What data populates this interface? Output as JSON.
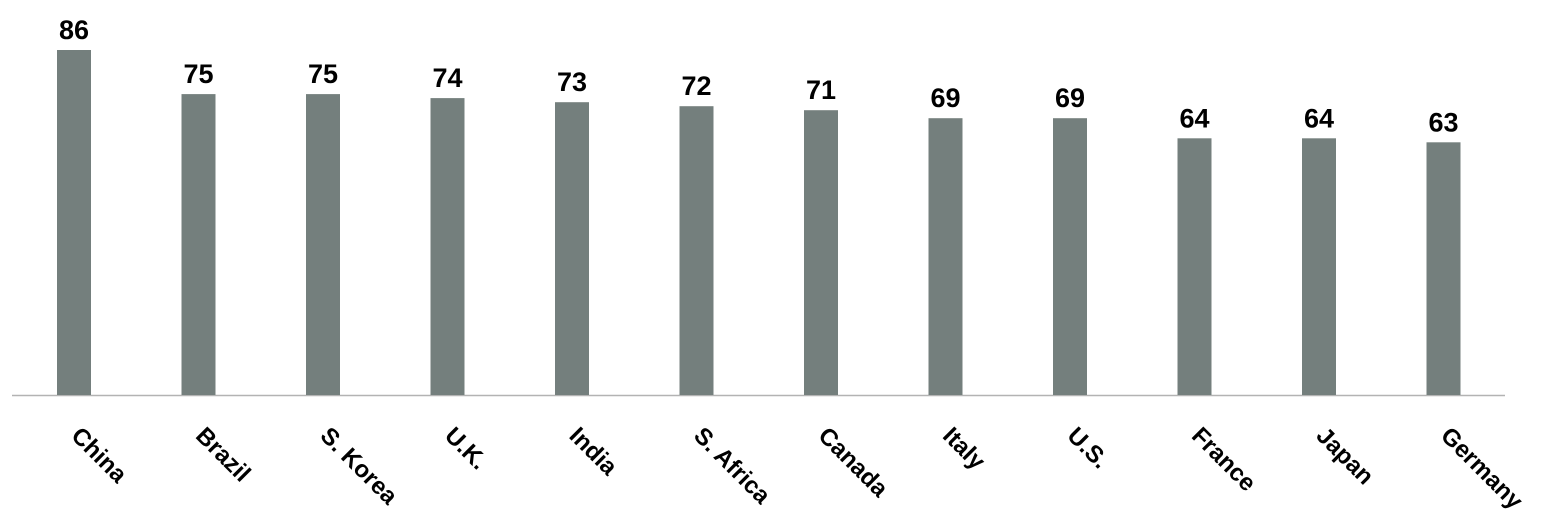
{
  "chart_data": {
    "type": "bar",
    "categories": [
      "China",
      "Brazil",
      "S. Korea",
      "U.K.",
      "India",
      "S. Africa",
      "Canada",
      "Italy",
      "U.S.",
      "France",
      "Japan",
      "Germany"
    ],
    "values": [
      86,
      75,
      75,
      74,
      73,
      72,
      71,
      69,
      69,
      64,
      64,
      63
    ],
    "ylim": [
      0,
      86
    ],
    "grid": false,
    "data_labels": true,
    "tick_label_rotation": "45deg",
    "colors": {
      "bar": "#747f7d",
      "axis": "#b3b3b3",
      "text": "#000000"
    }
  }
}
